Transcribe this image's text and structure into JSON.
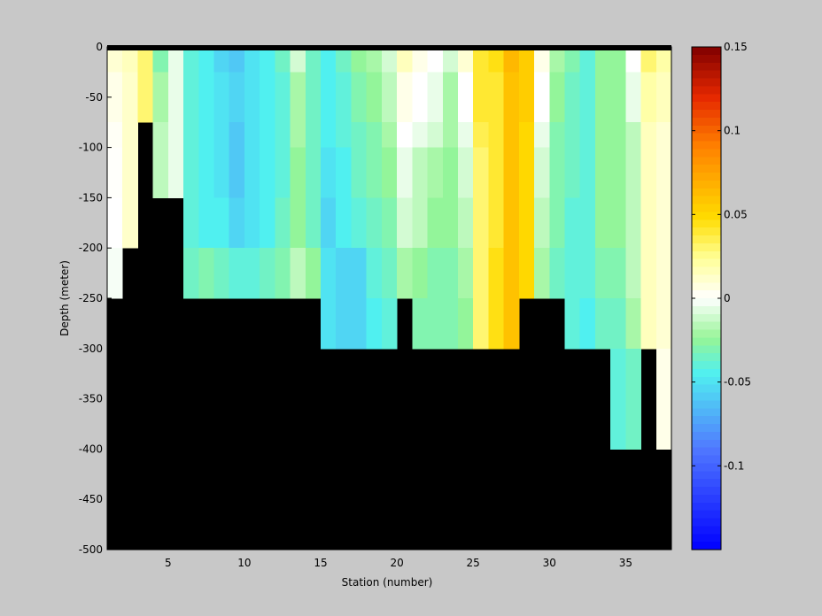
{
  "chart_data": {
    "type": "heatmap",
    "title": "",
    "xlabel": "Station (number)",
    "ylabel": "Depth (meter)",
    "xlim": [
      1,
      38
    ],
    "ylim": [
      -500,
      0
    ],
    "xticks": [
      5,
      10,
      15,
      20,
      25,
      30,
      35
    ],
    "yticks": [
      0,
      -50,
      -100,
      -150,
      -200,
      -250,
      -300,
      -350,
      -400,
      -450,
      -500
    ],
    "colorbar": {
      "range": [
        -0.15,
        0.15
      ],
      "ticks": [
        0.15,
        0.1,
        0.05,
        0,
        -0.05,
        -0.1
      ],
      "colormap": "jet-white-center"
    },
    "depth_levels_top": [
      0,
      -5,
      -25,
      -75,
      -100,
      -150,
      -200,
      -250,
      -300
    ],
    "depth_levels_bottom": [
      -5,
      -25,
      -75,
      -100,
      -150,
      -200,
      -250,
      -300,
      -400
    ],
    "stations": [
      1,
      2,
      3,
      4,
      5,
      6,
      7,
      8,
      9,
      10,
      11,
      12,
      13,
      14,
      15,
      16,
      17,
      18,
      19,
      20,
      21,
      22,
      23,
      24,
      25,
      26,
      27,
      28,
      29,
      30,
      31,
      32,
      33,
      34,
      35,
      36,
      37
    ],
    "bottom_depth": [
      -250,
      -200,
      -75,
      -150,
      -150,
      -250,
      -250,
      -250,
      -250,
      -250,
      -250,
      -250,
      -250,
      -250,
      -300,
      -300,
      -300,
      -300,
      -300,
      -250,
      -300,
      -300,
      -300,
      -300,
      -300,
      -300,
      -300,
      -250,
      -250,
      -250,
      -300,
      -300,
      -300,
      -400,
      -400,
      -300,
      -400
    ],
    "values": [
      [
        0.01,
        0.01,
        0.005,
        0.002,
        0.001,
        0.0,
        -0.002,
        -0.004,
        -0.003,
        -0.003
      ],
      [
        0.015,
        0.015,
        0.012,
        0.012,
        0.012,
        0.012,
        0.015,
        0.015,
        0.015,
        0.015
      ],
      [
        0.03,
        0.03,
        0.03,
        0.025,
        0.025,
        0.025,
        0.025,
        0.025,
        0.025,
        0.025
      ],
      [
        -0.03,
        -0.03,
        -0.02,
        -0.015,
        -0.015,
        -0.015,
        -0.015,
        -0.015,
        -0.015,
        -0.015
      ],
      [
        -0.005,
        -0.005,
        -0.005,
        -0.005,
        -0.005,
        -0.005,
        -0.005,
        -0.005,
        -0.005,
        -0.005
      ],
      [
        -0.04,
        -0.04,
        -0.04,
        -0.04,
        -0.04,
        -0.04,
        -0.035,
        -0.035,
        -0.035,
        -0.035
      ],
      [
        -0.045,
        -0.045,
        -0.045,
        -0.045,
        -0.045,
        -0.045,
        -0.03,
        -0.035,
        -0.035,
        -0.035
      ],
      [
        -0.055,
        -0.055,
        -0.05,
        -0.05,
        -0.05,
        -0.045,
        -0.035,
        -0.045,
        -0.045,
        -0.045
      ],
      [
        -0.06,
        -0.06,
        -0.055,
        -0.06,
        -0.06,
        -0.055,
        -0.04,
        -0.05,
        -0.05,
        -0.05
      ],
      [
        -0.05,
        -0.05,
        -0.05,
        -0.05,
        -0.05,
        -0.05,
        -0.04,
        -0.05,
        -0.05,
        -0.05
      ],
      [
        -0.045,
        -0.045,
        -0.045,
        -0.045,
        -0.045,
        -0.045,
        -0.035,
        -0.05,
        -0.05,
        -0.05
      ],
      [
        -0.035,
        -0.035,
        -0.04,
        -0.04,
        -0.04,
        -0.035,
        -0.03,
        -0.05,
        -0.05,
        -0.05
      ],
      [
        -0.01,
        -0.01,
        -0.02,
        -0.02,
        -0.025,
        -0.025,
        -0.015,
        -0.015,
        -0.015,
        -0.015
      ],
      [
        -0.035,
        -0.035,
        -0.035,
        -0.035,
        -0.035,
        -0.035,
        -0.025,
        -0.02,
        -0.02,
        -0.02
      ],
      [
        -0.045,
        -0.045,
        -0.045,
        -0.045,
        -0.05,
        -0.055,
        -0.05,
        -0.05,
        -0.04,
        -0.04
      ],
      [
        -0.035,
        -0.035,
        -0.04,
        -0.04,
        -0.045,
        -0.045,
        -0.055,
        -0.055,
        -0.05,
        -0.05
      ],
      [
        -0.025,
        -0.025,
        -0.03,
        -0.035,
        -0.035,
        -0.04,
        -0.055,
        -0.055,
        -0.05,
        -0.05
      ],
      [
        -0.02,
        -0.02,
        -0.025,
        -0.03,
        -0.03,
        -0.035,
        -0.04,
        -0.045,
        -0.045,
        -0.045
      ],
      [
        -0.01,
        -0.01,
        -0.015,
        -0.02,
        -0.025,
        -0.03,
        -0.035,
        -0.04,
        -0.04,
        -0.04
      ],
      [
        0.015,
        0.015,
        0.005,
        0.0,
        -0.005,
        -0.01,
        -0.02,
        -0.03,
        -0.03,
        -0.03
      ],
      [
        0.005,
        0.005,
        0.0,
        -0.005,
        -0.015,
        -0.015,
        -0.025,
        -0.03,
        -0.03,
        -0.03
      ],
      [
        0.0,
        0.0,
        -0.005,
        -0.01,
        -0.02,
        -0.025,
        -0.03,
        -0.03,
        -0.035,
        -0.035
      ],
      [
        -0.01,
        -0.01,
        -0.02,
        -0.02,
        -0.025,
        -0.025,
        -0.03,
        -0.03,
        -0.03,
        -0.03
      ],
      [
        0.01,
        0.01,
        0.0,
        -0.005,
        -0.01,
        -0.015,
        -0.02,
        -0.025,
        -0.025,
        -0.025
      ],
      [
        0.04,
        0.04,
        0.04,
        0.035,
        0.03,
        0.03,
        0.03,
        0.03,
        0.03,
        0.03
      ],
      [
        0.045,
        0.045,
        0.04,
        0.04,
        0.04,
        0.04,
        0.045,
        0.045,
        0.045,
        0.045
      ],
      [
        0.065,
        0.065,
        0.06,
        0.06,
        0.06,
        0.06,
        0.06,
        0.06,
        0.06,
        0.06
      ],
      [
        0.055,
        0.055,
        0.055,
        0.05,
        0.05,
        0.05,
        0.05,
        0.05,
        0.05,
        0.05
      ],
      [
        0.005,
        0.005,
        0.0,
        -0.005,
        -0.01,
        -0.015,
        -0.02,
        -0.02,
        -0.02,
        -0.02
      ],
      [
        -0.02,
        -0.02,
        -0.025,
        -0.03,
        -0.03,
        -0.03,
        -0.035,
        -0.035,
        -0.035,
        -0.035
      ],
      [
        -0.03,
        -0.03,
        -0.035,
        -0.035,
        -0.035,
        -0.04,
        -0.04,
        -0.04,
        -0.045,
        -0.045
      ],
      [
        -0.04,
        -0.04,
        -0.04,
        -0.04,
        -0.04,
        -0.04,
        -0.04,
        -0.045,
        -0.045,
        -0.045
      ],
      [
        -0.025,
        -0.025,
        -0.025,
        -0.025,
        -0.025,
        -0.025,
        -0.03,
        -0.035,
        -0.035,
        -0.035
      ],
      [
        -0.025,
        -0.025,
        -0.025,
        -0.025,
        -0.025,
        -0.025,
        -0.03,
        -0.035,
        -0.04,
        -0.045
      ],
      [
        0.0,
        0.0,
        -0.005,
        -0.015,
        -0.015,
        -0.015,
        -0.015,
        -0.02,
        -0.035,
        -0.045
      ],
      [
        0.03,
        0.03,
        0.02,
        0.015,
        0.015,
        0.015,
        0.015,
        0.015,
        0.01,
        0.01
      ],
      [
        0.02,
        0.02,
        0.015,
        0.01,
        0.01,
        0.01,
        0.01,
        0.01,
        0.005,
        0.005
      ]
    ]
  }
}
